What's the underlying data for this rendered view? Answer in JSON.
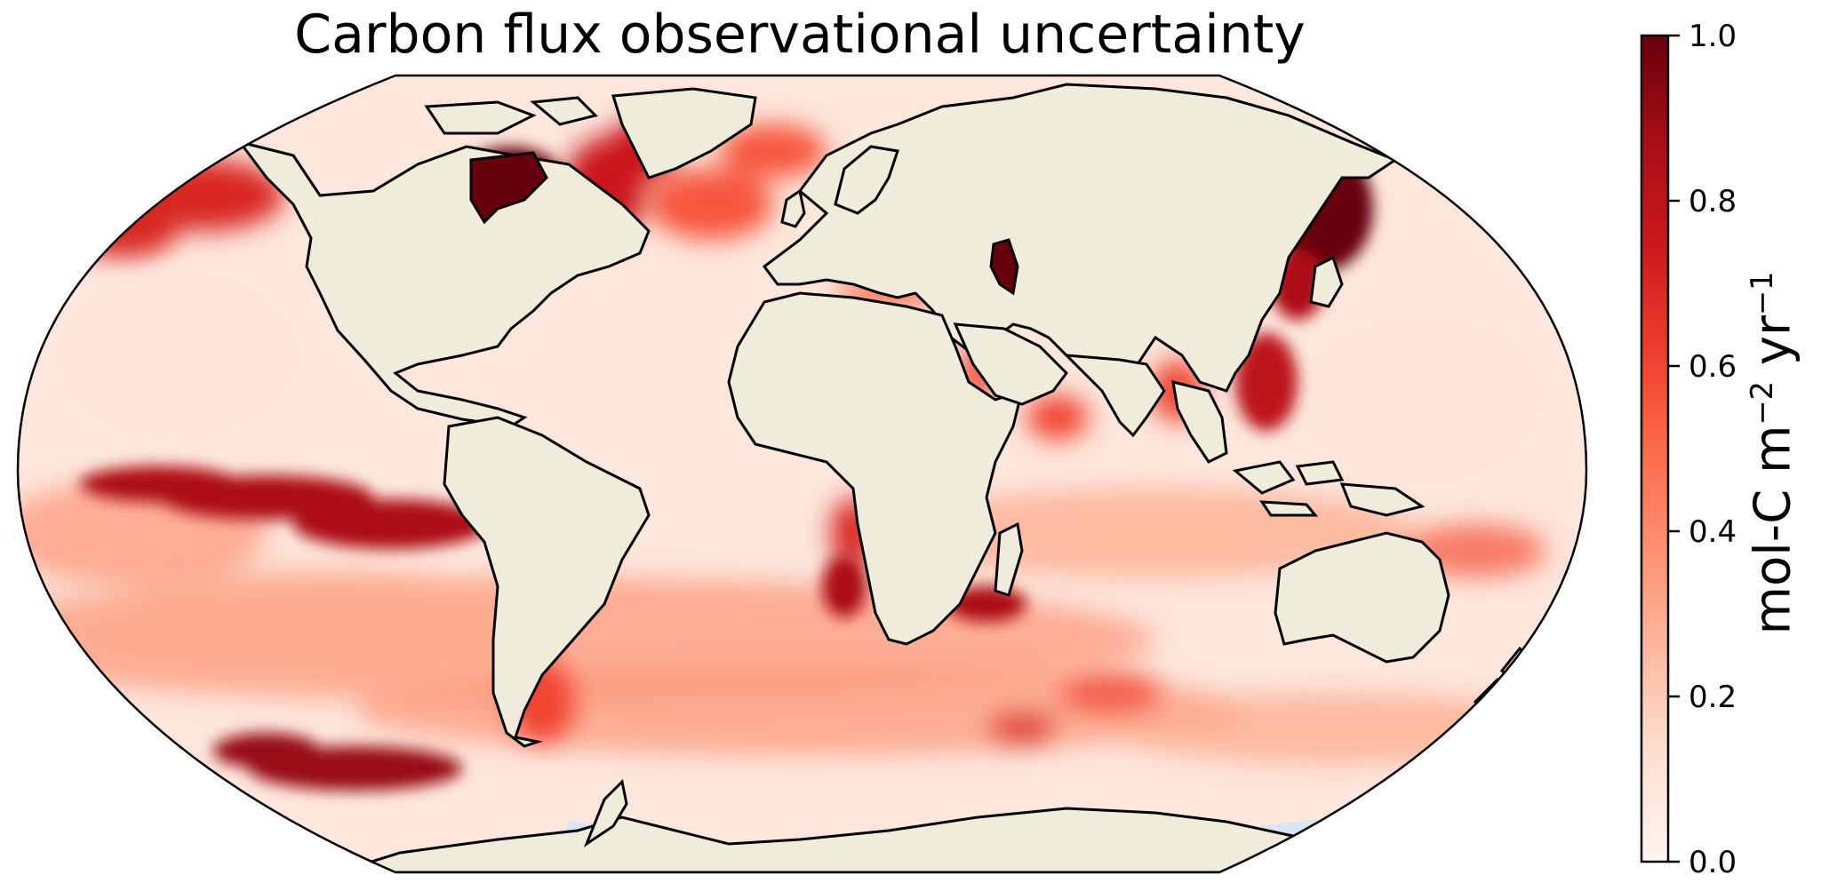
{
  "title": "Carbon flux observational uncertainty",
  "colorbar": {
    "label_main": "mol-C m",
    "label_exp1": "−2",
    "label_mid": " yr",
    "label_exp2": "−1",
    "min": 0.0,
    "max": 1.0,
    "ticks": [
      "0.0",
      "0.2",
      "0.4",
      "0.6",
      "0.8",
      "1.0"
    ],
    "colors": [
      "#fff5f0",
      "#fee0d2",
      "#fcbba1",
      "#fc9272",
      "#fb6a4a",
      "#ef3b2c",
      "#cb181d",
      "#a50f15",
      "#67000d"
    ]
  },
  "colors": {
    "land": "#efecdc",
    "ocean_background": "#fde6dc",
    "coastline": "#000000",
    "ice": "#d6e6f4"
  },
  "chart_data": {
    "type": "heatmap",
    "projection": "Robinson",
    "variable": "carbon flux observational uncertainty",
    "value_range": [
      0.0,
      1.0
    ],
    "hotspots": [
      {
        "region": "Hudson Bay",
        "value": 1.0
      },
      {
        "region": "Sea of Okhotsk",
        "value": 1.0
      },
      {
        "region": "Caspian Sea",
        "value": 0.95
      },
      {
        "region": "Peru upwelling (eastern equatorial Pacific)",
        "value": 0.85
      },
      {
        "region": "Labrador Sea",
        "value": 0.75
      },
      {
        "region": "Sea of Japan / Yellow Sea",
        "value": 0.85
      },
      {
        "region": "South China Sea",
        "value": 0.8
      },
      {
        "region": "Southern Ocean south of New Zealand",
        "value": 0.9
      },
      {
        "region": "Mozambique Channel / Agulhas",
        "value": 0.85
      },
      {
        "region": "Benguela upwelling",
        "value": 0.7
      },
      {
        "region": "Arabian Sea",
        "value": 0.6
      },
      {
        "region": "Red Sea",
        "value": 0.6
      },
      {
        "region": "Gulf of Alaska",
        "value": 0.7
      },
      {
        "region": "North Atlantic subpolar",
        "value": 0.55
      },
      {
        "region": "Patagonian shelf",
        "value": 0.6
      },
      {
        "region": "Mediterranean Sea",
        "value": 0.5
      },
      {
        "region": "Bay of Bengal",
        "value": 0.6
      },
      {
        "region": "Open subtropical gyres",
        "value": 0.1
      }
    ]
  }
}
